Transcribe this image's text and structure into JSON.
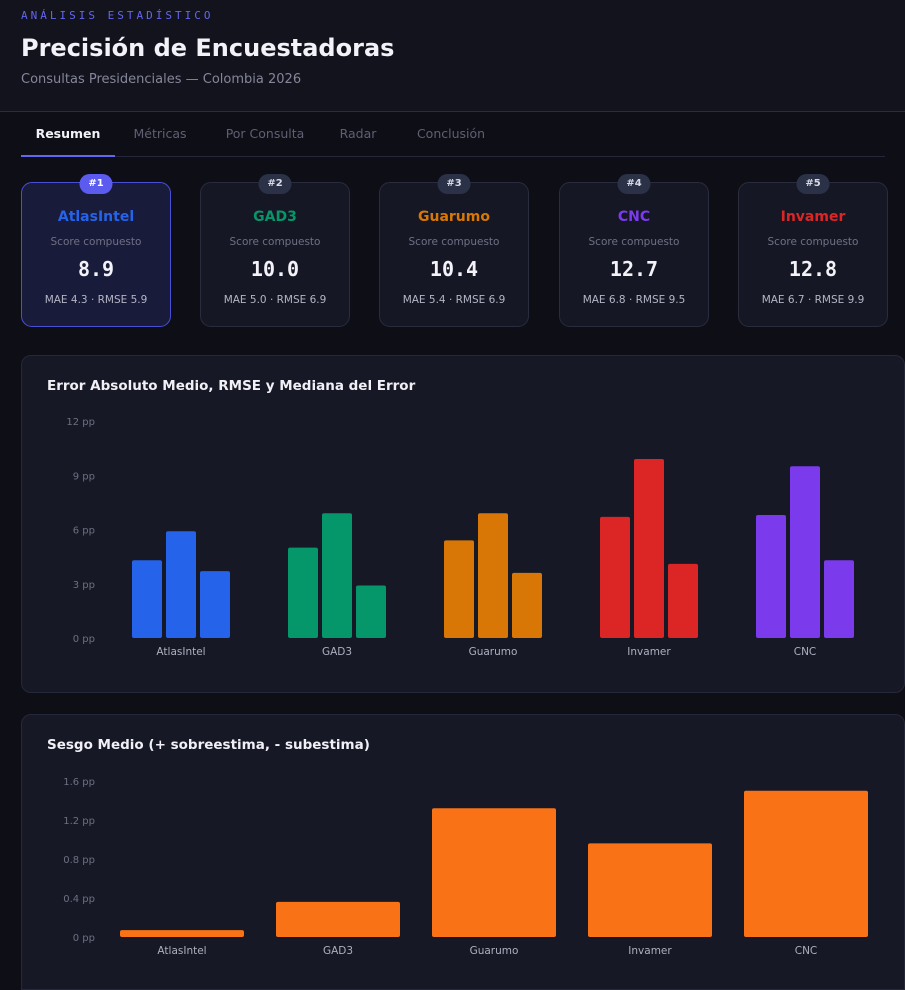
{
  "header": {
    "eyebrow": "ANÁLISIS ESTADÍSTICO",
    "title": "Precisión de Encuestadoras",
    "subtitle": "Consultas Presidenciales — Colombia 2026"
  },
  "tabs": [
    {
      "label": "Resumen",
      "active": true
    },
    {
      "label": "Métricas",
      "active": false
    },
    {
      "label": "Por Consulta",
      "active": false
    },
    {
      "label": "Radar",
      "active": false
    },
    {
      "label": "Conclusión",
      "active": false
    }
  ],
  "cards": [
    {
      "rank": "#1",
      "name": "AtlasIntel",
      "color": "#2563eb",
      "label": "Score compuesto",
      "score": "8.9",
      "detail": "MAE 4.3 · RMSE 5.9"
    },
    {
      "rank": "#2",
      "name": "GAD3",
      "color": "#059669",
      "label": "Score compuesto",
      "score": "10.0",
      "detail": "MAE 5.0 · RMSE 6.9"
    },
    {
      "rank": "#3",
      "name": "Guarumo",
      "color": "#d97706",
      "label": "Score compuesto",
      "score": "10.4",
      "detail": "MAE 5.4 · RMSE 6.9"
    },
    {
      "rank": "#4",
      "name": "CNC",
      "color": "#7c3aed",
      "label": "Score compuesto",
      "score": "12.7",
      "detail": "MAE 6.8 · RMSE 9.5"
    },
    {
      "rank": "#5",
      "name": "Invamer",
      "color": "#dc2626",
      "label": "Score compuesto",
      "score": "12.8",
      "detail": "MAE 6.7 · RMSE 9.9"
    }
  ],
  "chart_data": [
    {
      "type": "bar",
      "title": "Error Absoluto Medio, RMSE y Mediana del Error",
      "categories": [
        "AtlasIntel",
        "GAD3",
        "Guarumo",
        "Invamer",
        "CNC"
      ],
      "colors": [
        "#2563eb",
        "#059669",
        "#d97706",
        "#dc2626",
        "#7c3aed"
      ],
      "series": [
        {
          "values": [
            4.3,
            5.0,
            5.4,
            6.7,
            6.8
          ]
        },
        {
          "values": [
            5.9,
            6.9,
            6.9,
            9.9,
            9.5
          ]
        },
        {
          "values": [
            3.7,
            2.9,
            3.6,
            4.1,
            4.3
          ]
        }
      ],
      "yticks": [
        "12 pp",
        "9 pp",
        "6 pp",
        "3 pp",
        "0 pp"
      ],
      "ylim": [
        0,
        12
      ],
      "legend": "none",
      "grid": false
    },
    {
      "type": "bar",
      "title": "Sesgo Medio (+ sobreestima, - subestima)",
      "categories": [
        "AtlasIntel",
        "GAD3",
        "Guarumo",
        "Invamer",
        "CNC"
      ],
      "color": "#f97316",
      "values": [
        0.07,
        0.36,
        1.32,
        0.96,
        1.5
      ],
      "yticks": [
        "1.6 pp",
        "1.2 pp",
        "0.8 pp",
        "0.4 pp",
        "0 pp"
      ],
      "ylim": [
        0,
        1.6
      ],
      "legend": "none",
      "grid": false
    }
  ]
}
